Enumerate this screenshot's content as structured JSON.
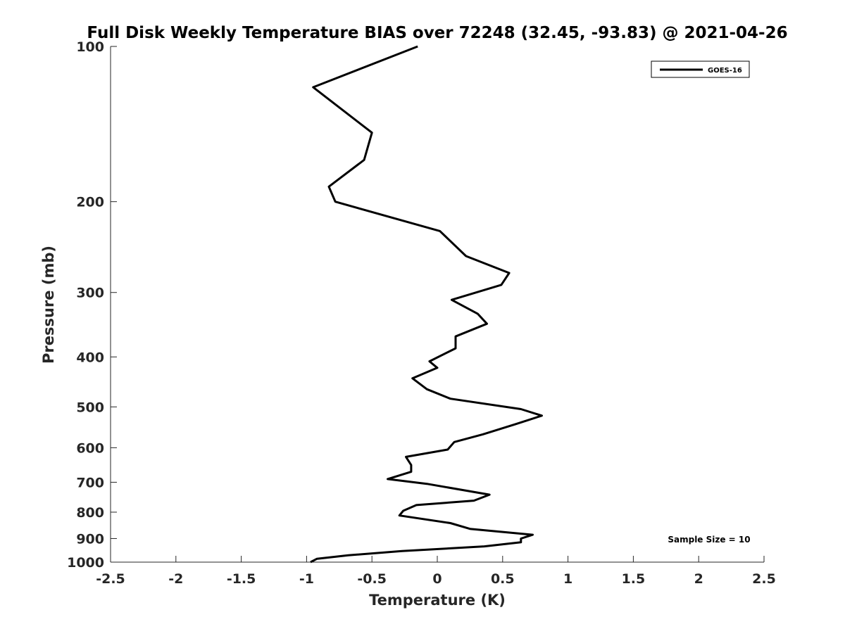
{
  "chart_data": {
    "type": "line",
    "title": "Full Disk Weekly Temperature BIAS over 72248 (32.45, -93.83) @ 2021-04-26",
    "xlabel": "Temperature (K)",
    "ylabel": "Pressure (mb)",
    "xlim": [
      -2.5,
      2.5
    ],
    "ylim": [
      100,
      1000
    ],
    "y_scale": "log",
    "y_reversed": true,
    "xticks": [
      "-2.5",
      "-2",
      "-1.5",
      "-1",
      "-0.5",
      "0",
      "0.5",
      "1",
      "1.5",
      "2",
      "2.5"
    ],
    "xtick_values": [
      -2.5,
      -2,
      -1.5,
      -1,
      -0.5,
      0,
      0.5,
      1,
      1.5,
      2,
      2.5
    ],
    "yticks": [
      "100",
      "200",
      "300",
      "400",
      "500",
      "600",
      "700",
      "800",
      "900",
      "1000"
    ],
    "ytick_values": [
      100,
      200,
      300,
      400,
      500,
      600,
      700,
      800,
      900,
      1000
    ],
    "grid": false,
    "legend_position": "top-right",
    "annotation": "Sample Size = 10",
    "series": [
      {
        "name": "GOES-16",
        "color": "#000000",
        "x": [
          -0.15,
          -0.95,
          -0.5,
          -0.56,
          -0.83,
          -0.78,
          0.02,
          0.22,
          0.55,
          0.49,
          0.11,
          0.31,
          0.38,
          0.14,
          0.14,
          -0.06,
          0.0,
          -0.19,
          -0.08,
          0.1,
          0.64,
          0.8,
          0.6,
          0.35,
          0.13,
          0.08,
          -0.24,
          -0.2,
          -0.2,
          -0.38,
          -0.08,
          0.4,
          0.28,
          -0.16,
          -0.26,
          -0.29,
          0.1,
          0.25,
          0.73,
          0.64,
          0.64,
          0.36,
          -0.27,
          -0.68,
          -0.92,
          -0.97
        ],
        "y": [
          100,
          120,
          147,
          166,
          187,
          200,
          228,
          255,
          275,
          290,
          310,
          330,
          345,
          365,
          385,
          408,
          420,
          440,
          462,
          482,
          505,
          520,
          540,
          565,
          585,
          605,
          625,
          648,
          668,
          690,
          705,
          740,
          760,
          775,
          795,
          812,
          840,
          862,
          885,
          900,
          915,
          932,
          952,
          970,
          985,
          1000
        ]
      }
    ]
  }
}
